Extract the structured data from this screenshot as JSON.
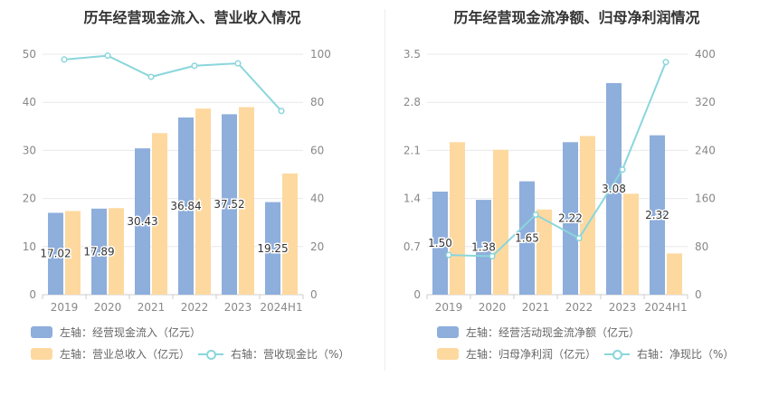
{
  "colors": {
    "primary": "#8eaedc",
    "secondary": "#fdd9a0",
    "line": "#8ad6dc"
  },
  "chart_data": [
    {
      "type": "bar",
      "title": "历年经营现金流入、营业收入情况",
      "categories": [
        "2019",
        "2020",
        "2021",
        "2022",
        "2023",
        "2024H1"
      ],
      "left_axis": {
        "ylim": [
          0,
          50
        ],
        "ticks": [
          "0",
          "10",
          "20",
          "30",
          "40",
          "50"
        ]
      },
      "right_axis": {
        "ylim": [
          0,
          100
        ],
        "ticks": [
          "0",
          "20",
          "40",
          "60",
          "80",
          "100"
        ]
      },
      "series": [
        {
          "name": "左轴：经营现金流入（亿元）",
          "axis": "left",
          "kind": "bar",
          "values": [
            17.02,
            17.89,
            30.43,
            36.84,
            37.52,
            19.25
          ],
          "labels": [
            "17.02",
            "17.89",
            "30.43",
            "36.84",
            "37.52",
            "19.25"
          ]
        },
        {
          "name": "左轴：营业总收入（亿元）",
          "axis": "left",
          "kind": "bar",
          "values": [
            17.4,
            18.0,
            33.6,
            38.7,
            39.0,
            25.2
          ]
        },
        {
          "name": "右轴：营收现金比（%）",
          "axis": "right",
          "kind": "line",
          "values": [
            97.8,
            99.4,
            90.6,
            95.2,
            96.2,
            76.4
          ]
        }
      ]
    },
    {
      "type": "bar",
      "title": "历年经营现金流净额、归母净利润情况",
      "categories": [
        "2019",
        "2020",
        "2021",
        "2022",
        "2023",
        "2024H1"
      ],
      "left_axis": {
        "ylim": [
          0,
          3.5
        ],
        "ticks": [
          "0",
          "0.7",
          "1.4",
          "2.1",
          "2.8",
          "3.5"
        ]
      },
      "right_axis": {
        "ylim": [
          0,
          400
        ],
        "ticks": [
          "0",
          "80",
          "160",
          "240",
          "320",
          "400"
        ]
      },
      "series": [
        {
          "name": "左轴：经营活动现金流净额（亿元）",
          "axis": "left",
          "kind": "bar",
          "values": [
            1.5,
            1.38,
            1.65,
            2.22,
            3.08,
            2.32
          ],
          "labels": [
            "1.50",
            "1.38",
            "1.65",
            "2.22",
            "3.08",
            "2.32"
          ]
        },
        {
          "name": "左轴：归母净利润（亿元）",
          "axis": "left",
          "kind": "bar",
          "values": [
            2.22,
            2.11,
            1.24,
            2.31,
            1.47,
            0.6
          ]
        },
        {
          "name": "右轴：净现比（%）",
          "axis": "right",
          "kind": "line",
          "values": [
            66,
            64,
            133,
            94,
            208,
            387
          ]
        }
      ]
    }
  ]
}
